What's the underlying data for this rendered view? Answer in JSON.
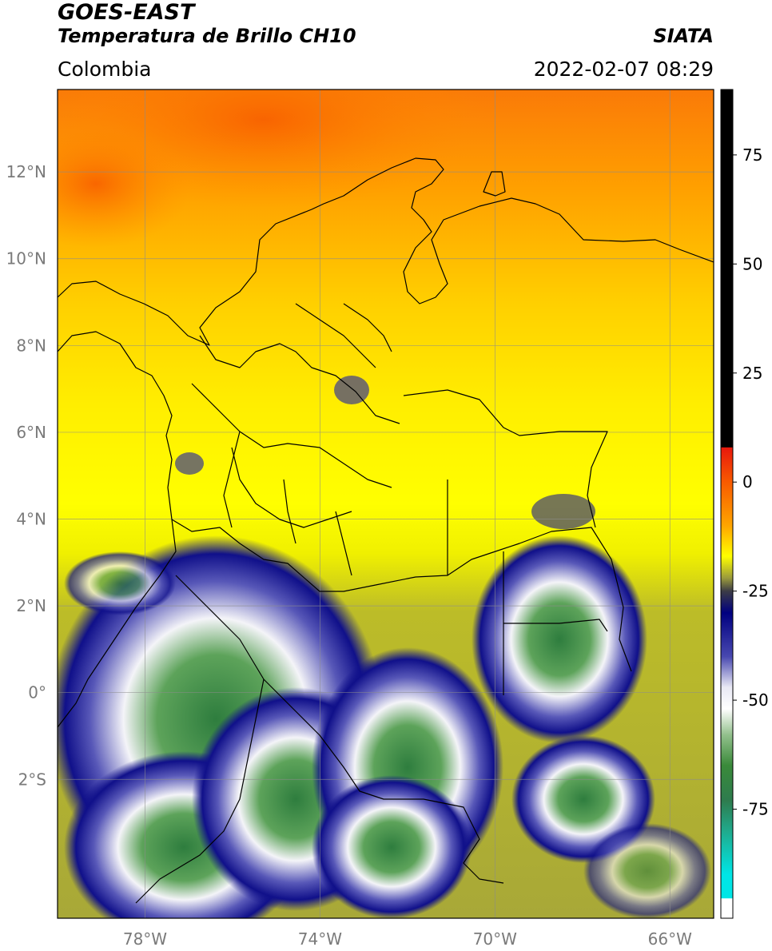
{
  "header": {
    "title_line1": "GOES-EAST",
    "title_line2": "Temperatura de Brillo CH10",
    "organization": "SIATA",
    "region": "Colombia",
    "datetime": "2022-02-07 08:29"
  },
  "map": {
    "lon_range": [
      -80.0,
      -65.0
    ],
    "lat_range": [
      -5.2,
      13.9
    ],
    "grid": true,
    "lat_ticks": [
      {
        "value": 12,
        "label": "12°N"
      },
      {
        "value": 10,
        "label": "10°N"
      },
      {
        "value": 8,
        "label": "8°N"
      },
      {
        "value": 6,
        "label": "6°N"
      },
      {
        "value": 4,
        "label": "4°N"
      },
      {
        "value": 2,
        "label": "2°N"
      },
      {
        "value": 0,
        "label": "0°"
      },
      {
        "value": -2,
        "label": "2°S"
      }
    ],
    "lon_ticks": [
      {
        "value": -78,
        "label": "78°W"
      },
      {
        "value": -74,
        "label": "74°W"
      },
      {
        "value": -70,
        "label": "70°W"
      },
      {
        "value": -66,
        "label": "66°W"
      }
    ]
  },
  "colorbar": {
    "range": [
      -100,
      90
    ],
    "ticks": [
      {
        "value": 75,
        "label": "75"
      },
      {
        "value": 50,
        "label": "50"
      },
      {
        "value": 25,
        "label": "25"
      },
      {
        "value": 0,
        "label": "0"
      },
      {
        "value": -25,
        "label": "-25"
      },
      {
        "value": -50,
        "label": "-50"
      },
      {
        "value": -75,
        "label": "-75"
      }
    ],
    "stops": [
      {
        "value": 90,
        "color": "#000000"
      },
      {
        "value": 8,
        "color": "#000000"
      },
      {
        "value": 7.9,
        "color": "#e8180c"
      },
      {
        "value": 0,
        "color": "#f85a00"
      },
      {
        "value": -10,
        "color": "#ffa500"
      },
      {
        "value": -17,
        "color": "#ffff00"
      },
      {
        "value": -22,
        "color": "#9a9a3c"
      },
      {
        "value": -25,
        "color": "#3c3c46"
      },
      {
        "value": -30,
        "color": "#000080"
      },
      {
        "value": -40,
        "color": "#4848b0"
      },
      {
        "value": -47,
        "color": "#e8e8f4"
      },
      {
        "value": -52,
        "color": "#ffffff"
      },
      {
        "value": -58,
        "color": "#92c08c"
      },
      {
        "value": -65,
        "color": "#3a8a3a"
      },
      {
        "value": -73,
        "color": "#2e7c4e"
      },
      {
        "value": -80,
        "color": "#20aa8c"
      },
      {
        "value": -90,
        "color": "#00e6e6"
      },
      {
        "value": -95.4,
        "color": "#00e6e6"
      },
      {
        "value": -95.5,
        "color": "#ffffff"
      },
      {
        "value": -100,
        "color": "#ffffff"
      }
    ]
  }
}
